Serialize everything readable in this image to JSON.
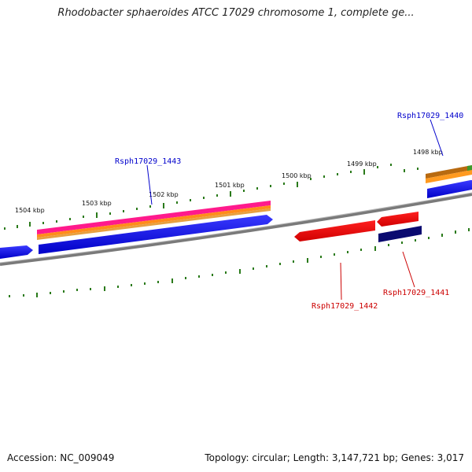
{
  "header": {
    "title": "Rhodobacter sphaeroides ATCC 17029 chromosome 1, complete ge..."
  },
  "scale": {
    "tick_labels": [
      "1504 kbp",
      "1503 kbp",
      "1502 kbp",
      "1501 kbp",
      "1500 kbp",
      "1499 kbp",
      "1498 kbp"
    ]
  },
  "genes": {
    "labels": [
      "Rsph17029_1443",
      "Rsph17029_1440",
      "Rsph17029_1442",
      "Rsph17029_1441"
    ]
  },
  "footer": {
    "accession": "Accession: NC_009049",
    "summary": "Topology: circular; Length: 3,147,721 bp; Genes: 3,017"
  },
  "colors": {
    "forward_label": "#0000cc",
    "reverse_label": "#cc0000",
    "backbone": "#888888",
    "tick": "#2a7a1a"
  }
}
